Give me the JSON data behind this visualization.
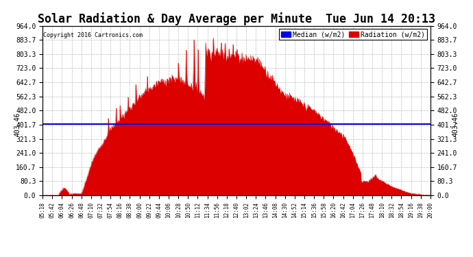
{
  "title": "Solar Radiation & Day Average per Minute  Tue Jun 14 20:13",
  "copyright": "Copyright 2016 Cartronics.com",
  "median_value": 403.46,
  "y_min": 0.0,
  "y_max": 964.0,
  "yticks": [
    0.0,
    80.3,
    160.7,
    241.0,
    321.3,
    401.7,
    482.0,
    562.3,
    642.7,
    723.0,
    803.3,
    883.7,
    964.0
  ],
  "median_label": "Median (w/m2)",
  "radiation_label": "Radiation (w/m2)",
  "median_color": "#0000ee",
  "radiation_color": "#dd0000",
  "background_color": "#ffffff",
  "grid_color": "#aaaaaa",
  "title_fontsize": 12,
  "legend_fontsize": 8,
  "x_tick_labels": [
    "05:18",
    "05:42",
    "06:04",
    "06:26",
    "06:48",
    "07:10",
    "07:32",
    "07:54",
    "08:16",
    "08:38",
    "09:00",
    "09:22",
    "09:44",
    "10:06",
    "10:28",
    "10:50",
    "11:12",
    "11:34",
    "11:56",
    "12:18",
    "12:40",
    "13:02",
    "13:24",
    "13:46",
    "14:08",
    "14:30",
    "14:52",
    "15:14",
    "15:36",
    "15:58",
    "16:20",
    "16:42",
    "17:04",
    "17:26",
    "17:48",
    "18:10",
    "18:32",
    "18:54",
    "19:16",
    "19:38",
    "20:00"
  ]
}
